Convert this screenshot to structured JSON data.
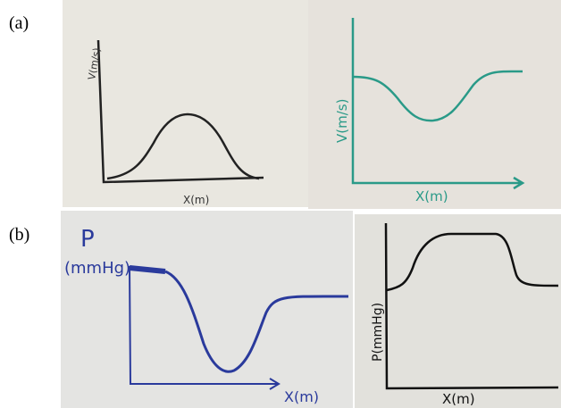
{
  "panels": [
    {
      "label": "(a)",
      "sketches": [
        {
          "y_label": "V(m/s)",
          "x_label": "X(m)"
        },
        {
          "y_label": "V(m/s)",
          "x_label": "X(m)"
        }
      ]
    },
    {
      "label": "(b)",
      "sketches": [
        {
          "y_label_lines": [
            "P",
            "(mmHg)"
          ],
          "x_label": "X(m)"
        },
        {
          "y_label": "P(mmHg)",
          "x_label": "X(m)"
        }
      ]
    }
  ]
}
